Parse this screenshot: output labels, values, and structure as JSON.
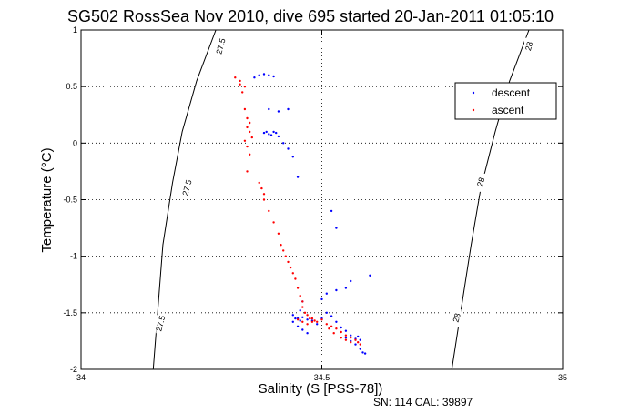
{
  "chart_data": {
    "type": "scatter",
    "title": "SG502 RossSea Nov 2010, dive 695 started 20-Jan-2011 01:05:10",
    "xlabel": "Salinity (S [PSS-78])",
    "ylabel": "Temperature (°C)",
    "xlim": [
      34,
      35
    ],
    "ylim": [
      -2,
      1
    ],
    "x_ticks": [
      "34",
      "34.5",
      "35"
    ],
    "y_ticks": [
      "-2",
      "-1.5",
      "-1",
      "-0.5",
      "0",
      "0.5",
      "1"
    ],
    "grid": true,
    "legend_position": "top-right",
    "footer": "SN: 114  CAL: 39897",
    "isopycnals": [
      {
        "label": "27.5",
        "points": [
          [
            34.28,
            1.0
          ],
          [
            34.24,
            0.55
          ],
          [
            34.21,
            0.1
          ],
          [
            34.19,
            -0.35
          ],
          [
            34.17,
            -0.9
          ],
          [
            34.16,
            -1.45
          ],
          [
            34.15,
            -2.0
          ]
        ],
        "label_positions": [
          [
            34.29,
            0.85
          ],
          [
            34.22,
            -0.4
          ],
          [
            34.165,
            -1.6
          ]
        ]
      },
      {
        "label": "28",
        "points": [
          [
            34.93,
            1.0
          ],
          [
            34.89,
            0.55
          ],
          [
            34.86,
            0.1
          ],
          [
            34.83,
            -0.4
          ],
          [
            34.81,
            -0.9
          ],
          [
            34.79,
            -1.45
          ],
          [
            34.77,
            -2.0
          ]
        ],
        "label_positions": [
          [
            34.93,
            0.85
          ],
          [
            34.83,
            -0.35
          ],
          [
            34.78,
            -1.55
          ]
        ]
      }
    ],
    "series": [
      {
        "name": "descent",
        "color": "#0000ff",
        "points": [
          [
            34.37,
            0.6
          ],
          [
            34.38,
            0.61
          ],
          [
            34.39,
            0.6
          ],
          [
            34.36,
            0.58
          ],
          [
            34.4,
            0.59
          ],
          [
            34.39,
            0.3
          ],
          [
            34.41,
            0.28
          ],
          [
            34.43,
            0.3
          ],
          [
            34.385,
            0.1
          ],
          [
            34.39,
            0.08
          ],
          [
            34.4,
            0.1
          ],
          [
            34.405,
            0.09
          ],
          [
            34.395,
            0.07
          ],
          [
            34.41,
            0.06
          ],
          [
            34.38,
            0.09
          ],
          [
            34.42,
            0.0
          ],
          [
            34.43,
            -0.05
          ],
          [
            34.44,
            -0.12
          ],
          [
            34.45,
            -0.3
          ],
          [
            34.52,
            -0.6
          ],
          [
            34.53,
            -0.75
          ],
          [
            34.6,
            -1.17
          ],
          [
            34.56,
            -1.22
          ],
          [
            34.55,
            -1.28
          ],
          [
            34.53,
            -1.3
          ],
          [
            34.51,
            -1.33
          ],
          [
            34.5,
            -1.38
          ],
          [
            34.46,
            -1.4
          ],
          [
            34.455,
            -1.48
          ],
          [
            34.44,
            -1.52
          ],
          [
            34.445,
            -1.55
          ],
          [
            34.45,
            -1.55
          ],
          [
            34.455,
            -1.57
          ],
          [
            34.46,
            -1.54
          ],
          [
            34.47,
            -1.56
          ],
          [
            34.48,
            -1.57
          ],
          [
            34.49,
            -1.6
          ],
          [
            34.44,
            -1.58
          ],
          [
            34.45,
            -1.62
          ],
          [
            34.46,
            -1.65
          ],
          [
            34.47,
            -1.68
          ],
          [
            34.5,
            -1.55
          ],
          [
            34.51,
            -1.5
          ],
          [
            34.52,
            -1.53
          ],
          [
            34.53,
            -1.58
          ],
          [
            34.54,
            -1.63
          ],
          [
            34.55,
            -1.66
          ],
          [
            34.56,
            -1.7
          ],
          [
            34.55,
            -1.72
          ],
          [
            34.56,
            -1.75
          ],
          [
            34.57,
            -1.78
          ],
          [
            34.58,
            -1.82
          ],
          [
            34.585,
            -1.85
          ],
          [
            34.59,
            -1.86
          ],
          [
            34.57,
            -1.73
          ],
          [
            34.575,
            -1.71
          ],
          [
            34.58,
            -1.74
          ]
        ]
      },
      {
        "name": "ascent",
        "color": "#ff0000",
        "points": [
          [
            34.32,
            0.58
          ],
          [
            34.33,
            0.55
          ],
          [
            34.33,
            0.52
          ],
          [
            34.34,
            0.5
          ],
          [
            34.335,
            0.45
          ],
          [
            34.34,
            0.3
          ],
          [
            34.345,
            0.22
          ],
          [
            34.35,
            0.18
          ],
          [
            34.345,
            0.14
          ],
          [
            34.35,
            0.1
          ],
          [
            34.355,
            0.05
          ],
          [
            34.34,
            0.02
          ],
          [
            34.345,
            -0.03
          ],
          [
            34.35,
            -0.1
          ],
          [
            34.345,
            -0.25
          ],
          [
            34.37,
            -0.35
          ],
          [
            34.375,
            -0.4
          ],
          [
            34.38,
            -0.45
          ],
          [
            34.38,
            -0.5
          ],
          [
            34.39,
            -0.6
          ],
          [
            34.4,
            -0.7
          ],
          [
            34.41,
            -0.8
          ],
          [
            34.415,
            -0.9
          ],
          [
            34.42,
            -0.95
          ],
          [
            34.425,
            -1.0
          ],
          [
            34.43,
            -1.05
          ],
          [
            34.435,
            -1.1
          ],
          [
            34.44,
            -1.15
          ],
          [
            34.445,
            -1.2
          ],
          [
            34.45,
            -1.28
          ],
          [
            34.455,
            -1.35
          ],
          [
            34.46,
            -1.4
          ],
          [
            34.46,
            -1.45
          ],
          [
            34.465,
            -1.5
          ],
          [
            34.47,
            -1.52
          ],
          [
            34.475,
            -1.55
          ],
          [
            34.48,
            -1.55
          ],
          [
            34.485,
            -1.57
          ],
          [
            34.49,
            -1.58
          ],
          [
            34.5,
            -1.56
          ],
          [
            34.51,
            -1.6
          ],
          [
            34.52,
            -1.62
          ],
          [
            34.53,
            -1.64
          ],
          [
            34.54,
            -1.67
          ],
          [
            34.55,
            -1.7
          ],
          [
            34.56,
            -1.72
          ],
          [
            34.57,
            -1.74
          ],
          [
            34.575,
            -1.76
          ],
          [
            34.58,
            -1.78
          ],
          [
            34.56,
            -1.76
          ],
          [
            34.55,
            -1.74
          ],
          [
            34.54,
            -1.72
          ],
          [
            34.525,
            -1.68
          ],
          [
            34.515,
            -1.64
          ],
          [
            34.45,
            -1.56
          ],
          [
            34.46,
            -1.58
          ],
          [
            34.47,
            -1.6
          ],
          [
            34.48,
            -1.58
          ]
        ]
      }
    ]
  }
}
